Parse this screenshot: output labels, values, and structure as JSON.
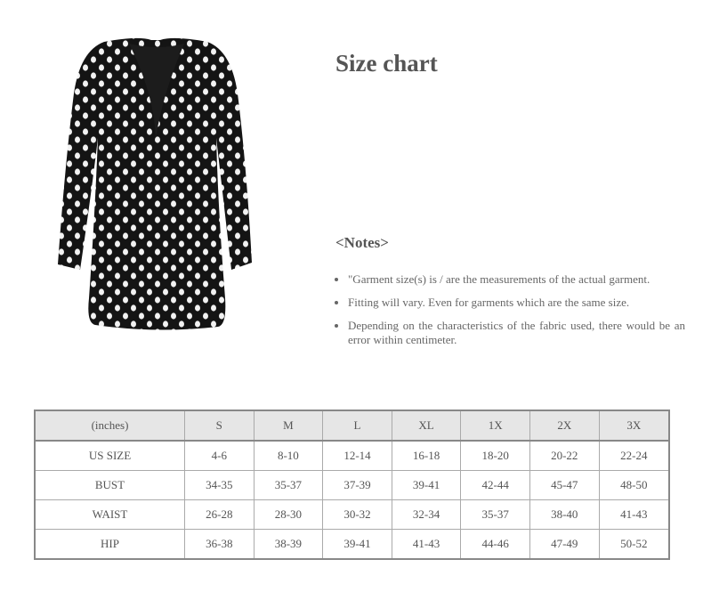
{
  "title": "Size chart",
  "notes": {
    "heading": "<Notes>",
    "items": [
      "\"Garment size(s) is / are the measurements of the actual garment.",
      "Fitting will vary. Even for garments which are the same size.",
      "Depending on the characteristics of the fabric used, there would be an error within centimeter."
    ]
  },
  "product_image": {
    "description_icon": "polka-dot-wrap-top-image",
    "colors": {
      "fabric": "#141414",
      "dots": "#f2f2f2"
    }
  },
  "size_table": {
    "headers": [
      "(inches)",
      "S",
      "M",
      "L",
      "XL",
      "1X",
      "2X",
      "3X"
    ],
    "rows": [
      [
        "US SIZE",
        "4-6",
        "8-10",
        "12-14",
        "16-18",
        "18-20",
        "20-22",
        "22-24"
      ],
      [
        "BUST",
        "34-35",
        "35-37",
        "37-39",
        "39-41",
        "42-44",
        "45-47",
        "48-50"
      ],
      [
        "WAIST",
        "26-28",
        "28-30",
        "30-32",
        "32-34",
        "35-37",
        "38-40",
        "41-43"
      ],
      [
        "HIP",
        "36-38",
        "38-39",
        "39-41",
        "41-43",
        "44-46",
        "47-49",
        "50-52"
      ]
    ]
  }
}
